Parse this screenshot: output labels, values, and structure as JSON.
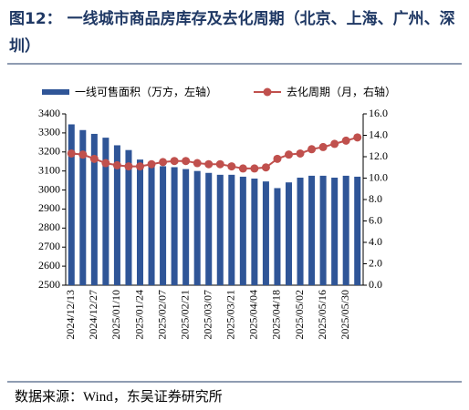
{
  "chart_data": {
    "type": "bar_line",
    "title": "图12： 一线城市商品房库存及去化周期（北京、上海、广州、深圳）",
    "source": "数据来源：Wind，东吴证券研究所",
    "categories": [
      "2024/12/13",
      null,
      "2024/12/27",
      null,
      "2025/01/10",
      null,
      "2025/01/24",
      null,
      "2025/02/07",
      null,
      "2025/02/21",
      null,
      "2025/03/07",
      null,
      "2025/03/21",
      null,
      "2025/04/04",
      null,
      "2025/04/18",
      null,
      "2025/05/02",
      null,
      "2025/05/16",
      null,
      "2025/05/30",
      null
    ],
    "series": [
      {
        "name": "一线可售面积（万方，左轴）",
        "color": "#2f5597",
        "type": "bar",
        "values": [
          3345,
          3315,
          3295,
          3275,
          3235,
          3210,
          3160,
          3135,
          3125,
          3120,
          3110,
          3100,
          3090,
          3080,
          3080,
          3070,
          3060,
          3045,
          3010,
          3040,
          3065,
          3075,
          3075,
          3065,
          3075,
          3070
        ]
      },
      {
        "name": "去化周期（月，右轴）",
        "color": "#c0504d",
        "type": "line",
        "axis": "y2",
        "values": [
          12.3,
          12.2,
          11.8,
          11.4,
          11.2,
          11.1,
          11.1,
          11.3,
          11.5,
          11.6,
          11.6,
          11.4,
          11.3,
          11.3,
          11.1,
          10.9,
          10.9,
          11.0,
          11.8,
          12.2,
          12.3,
          12.7,
          12.9,
          13.2,
          13.5,
          13.8
        ]
      }
    ],
    "ylim": [
      2500,
      3400
    ],
    "yticks": [
      2500,
      2600,
      2700,
      2800,
      2900,
      3000,
      3100,
      3200,
      3300,
      3400
    ],
    "y2lim": [
      0,
      16
    ],
    "y2ticks": [
      {
        "value": 0,
        "label": "0.0"
      },
      {
        "value": 2,
        "label": "2.0"
      },
      {
        "value": 4,
        "label": "4.0"
      },
      {
        "value": 6,
        "label": "6.0"
      },
      {
        "value": 8,
        "label": "8.0"
      },
      {
        "value": 10,
        "label": "10.0"
      },
      {
        "value": 12,
        "label": "12.0"
      },
      {
        "value": 14,
        "label": "14.0"
      },
      {
        "value": 16,
        "label": "16.0"
      }
    ],
    "legend": "top",
    "grid": false
  }
}
